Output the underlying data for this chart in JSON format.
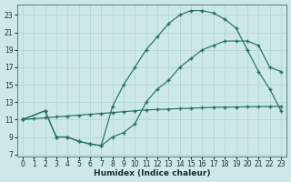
{
  "xlabel": "Humidex (Indice chaleur)",
  "bg_color": "#cce8e8",
  "grid_color": "#b8d8d8",
  "line_color": "#2a7060",
  "xlim": [
    -0.5,
    23.5
  ],
  "ylim": [
    6.8,
    24.2
  ],
  "xticks": [
    0,
    1,
    2,
    3,
    4,
    5,
    6,
    7,
    8,
    9,
    10,
    11,
    12,
    13,
    14,
    15,
    16,
    17,
    18,
    19,
    20,
    21,
    22,
    23
  ],
  "yticks": [
    7,
    9,
    11,
    13,
    15,
    17,
    19,
    21,
    23
  ],
  "line1": {
    "x": [
      0,
      1,
      2,
      3,
      4,
      5,
      6,
      7,
      8,
      9,
      10,
      11,
      12,
      13,
      14,
      15,
      16,
      17,
      18,
      19,
      20,
      21,
      22,
      23
    ],
    "y": [
      11,
      11.1,
      11.2,
      11.3,
      11.4,
      11.5,
      11.6,
      11.7,
      11.8,
      11.9,
      12.0,
      12.1,
      12.15,
      12.2,
      12.25,
      12.3,
      12.35,
      12.4,
      12.42,
      12.44,
      12.46,
      12.48,
      12.5,
      12.5
    ]
  },
  "line2": {
    "x": [
      0,
      2,
      3,
      4,
      5,
      6,
      7,
      8,
      9,
      10,
      11,
      12,
      13,
      14,
      15,
      16,
      17,
      18,
      19,
      20,
      21,
      22,
      23
    ],
    "y": [
      11,
      12,
      9,
      9,
      8.5,
      8.2,
      8.0,
      12.5,
      15.0,
      17.0,
      19.0,
      20.5,
      22.0,
      23.0,
      23.5,
      23.5,
      23.2,
      22.5,
      21.5,
      19.0,
      16.5,
      14.5,
      12.0
    ]
  },
  "line3": {
    "x": [
      0,
      2,
      3,
      4,
      5,
      6,
      7,
      8,
      9,
      10,
      11,
      12,
      13,
      14,
      15,
      16,
      17,
      18,
      19,
      20,
      21,
      22,
      23
    ],
    "y": [
      11,
      12,
      9,
      9,
      8.5,
      8.2,
      8.0,
      9.0,
      9.5,
      10.5,
      13.0,
      14.5,
      15.5,
      17.0,
      18.0,
      19.0,
      19.5,
      20.0,
      20.0,
      20.0,
      19.5,
      17.0,
      16.5
    ]
  }
}
